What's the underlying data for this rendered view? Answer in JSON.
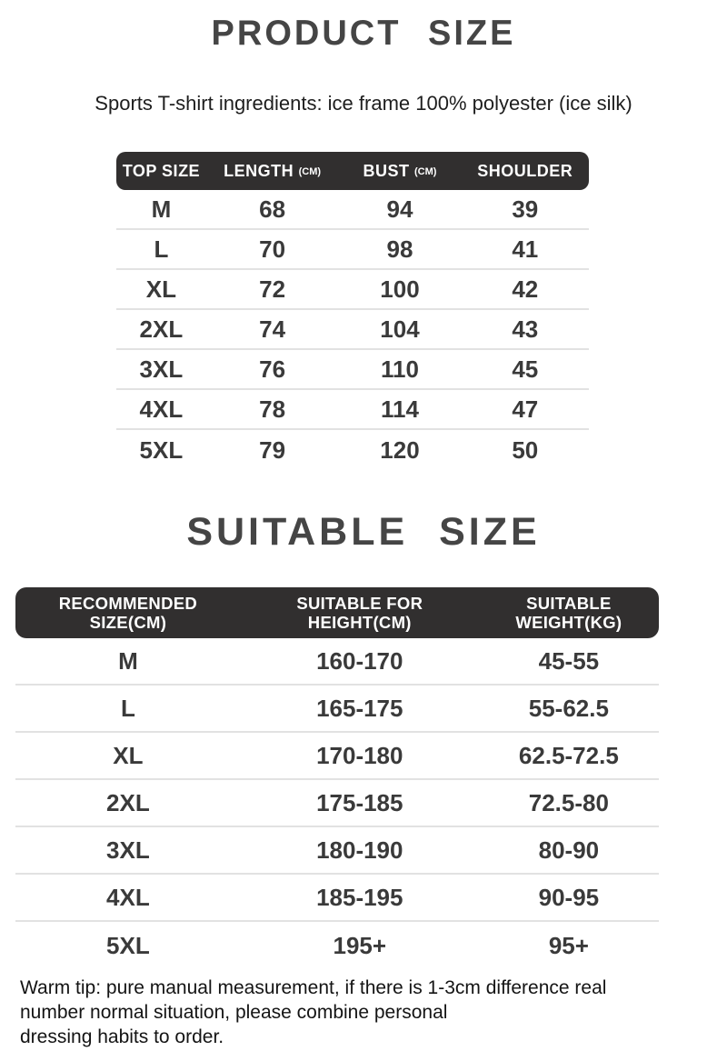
{
  "page": {
    "title": "PRODUCT SIZE",
    "subtitle": "Sports T-shirt ingredients: ice frame 100% polyester (ice silk)",
    "section2_title": "SUITABLE SIZE",
    "warm_tip": "Warm tip: pure manual measurement, if there is 1-3cm difference real\nnumber normal situation, please combine personal\ndressing habits to order."
  },
  "colors": {
    "background": "#ffffff",
    "header_bar": "#312f2f",
    "header_text": "#ffffff",
    "title_text": "#454545",
    "body_text": "#3a3a3a",
    "tip_text": "#141414",
    "divider": "#e2e2e2"
  },
  "size_table": {
    "columns": [
      {
        "label": "TOP SIZE",
        "unit": ""
      },
      {
        "label": "LENGTH",
        "unit": "(CM)"
      },
      {
        "label": "BUST",
        "unit": "(CM)"
      },
      {
        "label": "SHOULDER",
        "unit": ""
      }
    ],
    "rows": [
      {
        "size": "M",
        "length": "68",
        "bust": "94",
        "shoulder": "39"
      },
      {
        "size": "L",
        "length": "70",
        "bust": "98",
        "shoulder": "41"
      },
      {
        "size": "XL",
        "length": "72",
        "bust": "100",
        "shoulder": "42"
      },
      {
        "size": "2XL",
        "length": "74",
        "bust": "104",
        "shoulder": "43"
      },
      {
        "size": "3XL",
        "length": "76",
        "bust": "110",
        "shoulder": "45"
      },
      {
        "size": "4XL",
        "length": "78",
        "bust": "114",
        "shoulder": "47"
      },
      {
        "size": "5XL",
        "length": "79",
        "bust": "120",
        "shoulder": "50"
      }
    ]
  },
  "suitable_table": {
    "columns": [
      {
        "label": "RECOMMENDED\nSIZE(CM)"
      },
      {
        "label": "SUITABLE FOR\nHEIGHT(CM)"
      },
      {
        "label": "SUITABLE\nWEIGHT(KG)"
      }
    ],
    "rows": [
      {
        "size": "M",
        "height": "160-170",
        "weight": "45-55"
      },
      {
        "size": "L",
        "height": "165-175",
        "weight": "55-62.5"
      },
      {
        "size": "XL",
        "height": "170-180",
        "weight": "62.5-72.5"
      },
      {
        "size": "2XL",
        "height": "175-185",
        "weight": "72.5-80"
      },
      {
        "size": "3XL",
        "height": "180-190",
        "weight": "80-90"
      },
      {
        "size": "4XL",
        "height": "185-195",
        "weight": "90-95"
      },
      {
        "size": "5XL",
        "height": "195+",
        "weight": "95+"
      }
    ]
  }
}
